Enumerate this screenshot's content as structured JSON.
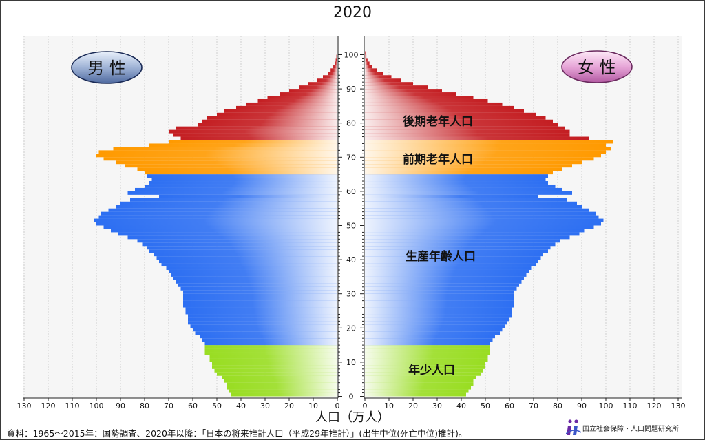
{
  "chart_data": {
    "type": "population-pyramid",
    "title": "2020",
    "xlabel": "人口（万人）",
    "x_ticks_left": [
      "130",
      "120",
      "110",
      "100",
      "90",
      "80",
      "70",
      "60",
      "50",
      "40",
      "30",
      "20",
      "10",
      "0"
    ],
    "x_ticks_right": [
      "0",
      "10",
      "20",
      "30",
      "40",
      "50",
      "60",
      "70",
      "80",
      "90",
      "100",
      "110",
      "120",
      "130"
    ],
    "y_ticks": [
      "0",
      "10",
      "20",
      "30",
      "40",
      "50",
      "60",
      "70",
      "80",
      "90",
      "100"
    ],
    "xlim": [
      0,
      130
    ],
    "ylim": [
      0,
      100
    ],
    "male_label": "男 性",
    "female_label": "女 性",
    "groups": [
      {
        "label": "年少人口",
        "ages": [
          0,
          14
        ],
        "color": "#99dd22"
      },
      {
        "label": "生産年齢人口",
        "ages": [
          15,
          64
        ],
        "color": "#2d6ff2"
      },
      {
        "label": "前期老年人口",
        "ages": [
          65,
          74
        ],
        "color": "#ff9a00"
      },
      {
        "label": "後期老年人口",
        "ages": [
          75,
          105
        ],
        "color": "#c41e22"
      }
    ],
    "ages": [
      0,
      1,
      2,
      3,
      4,
      5,
      6,
      7,
      8,
      9,
      10,
      11,
      12,
      13,
      14,
      15,
      16,
      17,
      18,
      19,
      20,
      21,
      22,
      23,
      24,
      25,
      26,
      27,
      28,
      29,
      30,
      31,
      32,
      33,
      34,
      35,
      36,
      37,
      38,
      39,
      40,
      41,
      42,
      43,
      44,
      45,
      46,
      47,
      48,
      49,
      50,
      51,
      52,
      53,
      54,
      55,
      56,
      57,
      58,
      59,
      60,
      61,
      62,
      63,
      64,
      65,
      66,
      67,
      68,
      69,
      70,
      71,
      72,
      73,
      74,
      75,
      76,
      77,
      78,
      79,
      80,
      81,
      82,
      83,
      84,
      85,
      86,
      87,
      88,
      89,
      90,
      91,
      92,
      93,
      94,
      95,
      96,
      97,
      98,
      99,
      100,
      101,
      102,
      103,
      104,
      105
    ],
    "male": [
      44,
      45,
      46,
      46,
      47,
      48,
      50,
      51,
      52,
      52,
      53,
      53,
      55,
      55,
      55,
      55,
      56,
      57,
      59,
      60,
      61,
      62,
      62,
      62,
      63,
      63,
      64,
      64,
      64,
      64,
      64,
      65,
      66,
      67,
      68,
      69,
      70,
      71,
      73,
      74,
      75,
      76,
      78,
      79,
      81,
      83,
      87,
      91,
      94,
      97,
      100,
      101,
      99,
      98,
      95,
      92,
      90,
      86,
      74,
      87,
      84,
      80,
      78,
      77,
      79,
      80,
      83,
      88,
      92,
      97,
      100,
      99,
      93,
      78,
      70,
      65,
      68,
      70,
      67,
      58,
      56,
      54,
      50,
      47,
      42,
      38,
      33,
      29,
      24,
      20,
      16,
      12,
      8.5,
      6,
      4,
      2.8,
      1.7,
      1.1,
      0.7,
      0.4,
      0.2,
      0.1,
      0.05,
      0.03,
      0.01,
      0
    ],
    "female": [
      42,
      43,
      44,
      45,
      45,
      46,
      48,
      49,
      50,
      50,
      51,
      51,
      52,
      52,
      52,
      52,
      53,
      54,
      56,
      57,
      58,
      59,
      60,
      61,
      61,
      61,
      62,
      62,
      62,
      62,
      62,
      63,
      64,
      65,
      66,
      67,
      68,
      69,
      71,
      72,
      73,
      74,
      76,
      77,
      79,
      81,
      85,
      89,
      91,
      95,
      98,
      99,
      97,
      96,
      93,
      90,
      88,
      84,
      72,
      86,
      82,
      79,
      76,
      75,
      76,
      78,
      82,
      86,
      90,
      95,
      98,
      100,
      102,
      100,
      103,
      93,
      85,
      85,
      83,
      80,
      78,
      75,
      71,
      66,
      62,
      57,
      51,
      45,
      38,
      32,
      26,
      20,
      15,
      11,
      7.6,
      5,
      3,
      1.9,
      1.1,
      0.6,
      0.3,
      0.15,
      0.07,
      0.03,
      0.01,
      0
    ],
    "grid": true
  },
  "source_text": "資料：1965〜2015年：国勢調査、2020年以降：「日本の将来推計人口（平成29年推計）」(出生中位(死亡中位)推計)。",
  "logo_text": "国立社会保障・人口問題研究所"
}
